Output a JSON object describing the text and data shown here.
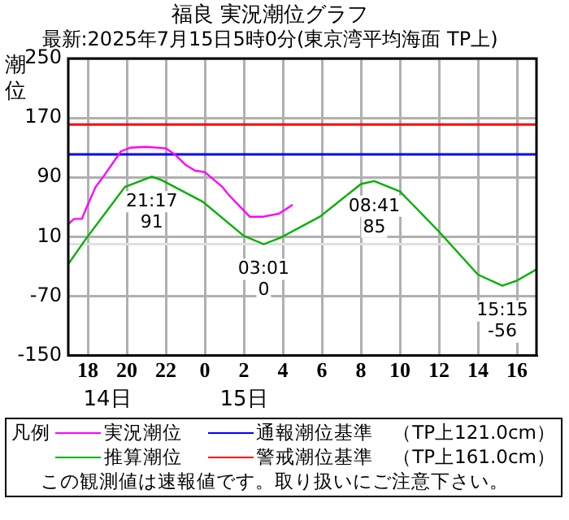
{
  "chart_data": {
    "type": "line",
    "title": "福良 実況潮位グラフ",
    "subtitle": "最新:2025年7月15日5時0分(東京湾平均海面 TP上)",
    "ylabel": "潮位",
    "legend_title": "凡例",
    "legend": "bottom",
    "grid": true,
    "marker": "none",
    "line_style": "solid",
    "xlim": [
      "2025-07-14T17:00",
      "2025-07-15T17:00"
    ],
    "xticks": [
      {
        "value": "2025-07-14T18:00",
        "label": "18"
      },
      {
        "value": "2025-07-14T20:00",
        "label": "20"
      },
      {
        "value": "2025-07-14T22:00",
        "label": "22"
      },
      {
        "value": "2025-07-15T00:00",
        "label": "0"
      },
      {
        "value": "2025-07-15T02:00",
        "label": "2"
      },
      {
        "value": "2025-07-15T04:00",
        "label": "4"
      },
      {
        "value": "2025-07-15T06:00",
        "label": "6"
      },
      {
        "value": "2025-07-15T08:00",
        "label": "8"
      },
      {
        "value": "2025-07-15T10:00",
        "label": "10"
      },
      {
        "value": "2025-07-15T12:00",
        "label": "12"
      },
      {
        "value": "2025-07-15T14:00",
        "label": "14"
      },
      {
        "value": "2025-07-15T16:00",
        "label": "16"
      }
    ],
    "x2lim": [
      "2025-07-14T17:00",
      "2025-07-15T17:00"
    ],
    "x2ticks": [
      {
        "value": "2025-07-14T19:00",
        "label": "14日"
      },
      {
        "value": "2025-07-15T02:00",
        "label": "15日"
      }
    ],
    "ylim": [
      -150,
      250
    ],
    "yticks": [
      -150,
      -70,
      10,
      90,
      170,
      250
    ],
    "series": [
      {
        "name": "実況潮位",
        "color": "#ff00ff",
        "x": [
          "2025-07-14T17:00",
          "2025-07-14T17:18",
          "2025-07-14T17:42",
          "2025-07-14T17:54",
          "2025-07-14T18:24",
          "2025-07-14T18:48",
          "2025-07-14T19:42",
          "2025-07-14T20:12",
          "2025-07-14T21:00",
          "2025-07-14T22:00",
          "2025-07-14T22:30",
          "2025-07-14T23:00",
          "2025-07-14T23:30",
          "2025-07-15T00:00",
          "2025-07-15T00:54",
          "2025-07-15T01:12",
          "2025-07-15T02:18",
          "2025-07-15T03:00",
          "2025-07-15T03:48",
          "2025-07-15T04:30"
        ],
        "values": [
          27,
          34,
          34,
          47,
          77,
          91,
          125,
          130,
          131,
          129,
          120,
          107,
          99,
          97,
          77,
          67,
          37,
          37,
          41,
          53
        ]
      },
      {
        "name": "推算潮位",
        "color": "#00b000",
        "x": [
          "2025-07-14T17:00",
          "2025-07-14T17:54",
          "2025-07-14T19:54",
          "2025-07-14T21:17",
          "2025-07-14T21:48",
          "2025-07-14T23:54",
          "2025-07-15T02:00",
          "2025-07-15T03:01",
          "2025-07-15T03:54",
          "2025-07-15T05:54",
          "2025-07-15T08:00",
          "2025-07-15T08:41",
          "2025-07-15T10:00",
          "2025-07-15T12:00",
          "2025-07-15T14:00",
          "2025-07-15T15:15",
          "2025-07-15T16:00",
          "2025-07-15T17:00"
        ],
        "values": [
          -27,
          7,
          77,
          91,
          86,
          57,
          11,
          0,
          9,
          37,
          81,
          85,
          71,
          17,
          -41,
          -56,
          -49,
          -34
        ]
      }
    ],
    "ref_lines": [
      {
        "axis": "y",
        "value": 121,
        "label": "通報潮位基準　（TP上121.0cm）",
        "color": "#0000ff"
      },
      {
        "axis": "y",
        "value": 161,
        "label": "警戒潮位基準　（TP上161.0cm）",
        "color": "#ff0000"
      },
      {
        "axis": "y",
        "value": 0,
        "color": "#e0e0e0"
      }
    ],
    "annotations": [
      {
        "text": "21:17\n91",
        "x": "2025-07-14T21:17",
        "y": 91
      },
      {
        "text": "03:01\n0",
        "x": "2025-07-15T03:01",
        "y": 0
      },
      {
        "text": "08:41\n85",
        "x": "2025-07-15T08:41",
        "y": 85
      },
      {
        "text": "15:15\n-56",
        "x": "2025-07-15T15:15",
        "y": -56
      },
      "この観測値は速報値です。取り扱いにご注意下さい。"
    ]
  }
}
